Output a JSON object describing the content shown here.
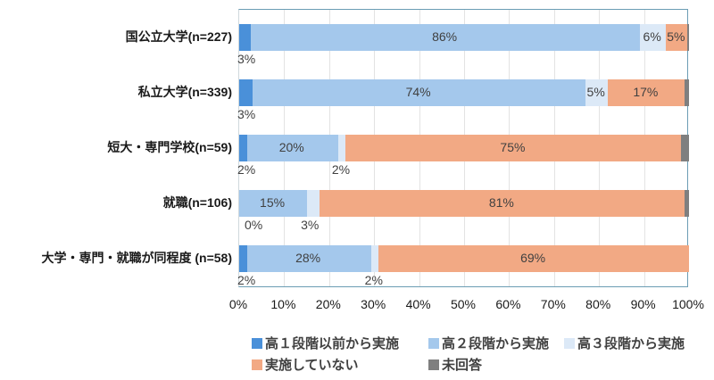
{
  "chart_data": {
    "type": "bar",
    "orientation": "horizontal",
    "stacked": "100%",
    "title": "",
    "xlabel": "",
    "ylabel": "",
    "xlim": [
      0,
      100
    ],
    "grid": true,
    "legend_position": "bottom",
    "x_ticks": [
      "0%",
      "10%",
      "20%",
      "30%",
      "40%",
      "50%",
      "60%",
      "70%",
      "80%",
      "90%",
      "100%"
    ],
    "categories": [
      "国公立大学(n=227)",
      "私立大学(n=339)",
      "短大・専門学校(n=59)",
      "就職(n=106)",
      "大学・専門・就職が同程度 (n=58)"
    ],
    "series": [
      {
        "name": "高１段階以前から実施",
        "color": "#4a90d9",
        "values": [
          3,
          3,
          2,
          0,
          2
        ],
        "labels": [
          "3%",
          "3%",
          "2%",
          "0%",
          "2%"
        ]
      },
      {
        "name": "高２段階から実施",
        "color": "#a4c8ec",
        "values": [
          86,
          74,
          20,
          15,
          28
        ],
        "labels": [
          "86%",
          "74%",
          "20%",
          "15%",
          "28%"
        ]
      },
      {
        "name": "高３段階から実施",
        "color": "#dce9f7",
        "values": [
          6,
          5,
          2,
          3,
          2
        ],
        "labels": [
          "6%",
          "5%",
          "2%",
          "3%",
          "2%"
        ]
      },
      {
        "name": "実施していない",
        "color": "#f2a984",
        "values": [
          5,
          17,
          75,
          81,
          69
        ],
        "labels": [
          "5%",
          "17%",
          "75%",
          "81%",
          "69%"
        ]
      },
      {
        "name": "未回答",
        "color": "#7f7f7f",
        "values": [
          0.3,
          0.9,
          1.7,
          0.9,
          0
        ],
        "labels": [
          "",
          "",
          "",
          "",
          ""
        ]
      }
    ]
  },
  "render": {
    "rows": [
      {
        "label": "国公立大学(n=227)",
        "segs": [
          2.6,
          86.5,
          5.8,
          4.8,
          0.3
        ]
      },
      {
        "label": "私立大学(n=339)",
        "segs": [
          3.0,
          74.0,
          5.0,
          17.1,
          0.9
        ]
      },
      {
        "label": "短大・専門学校(n=59)",
        "segs": [
          1.7,
          20.3,
          1.7,
          74.6,
          1.7
        ]
      },
      {
        "label": "就職(n=106)",
        "segs": [
          0,
          15.1,
          2.8,
          81.2,
          0.9
        ]
      },
      {
        "label": "大学・専門・就職が同程度 (n=58)",
        "segs": [
          1.7,
          27.6,
          1.7,
          69.0,
          0
        ]
      }
    ]
  },
  "legend": {
    "items": [
      {
        "label": "高１段階以前から実施",
        "color": "#4a90d9"
      },
      {
        "label": "高２段階から実施",
        "color": "#a4c8ec"
      },
      {
        "label": "高３段階から実施",
        "color": "#dce9f7"
      },
      {
        "label": "実施していない",
        "color": "#f2a984"
      },
      {
        "label": "未回答",
        "color": "#7f7f7f"
      }
    ]
  }
}
